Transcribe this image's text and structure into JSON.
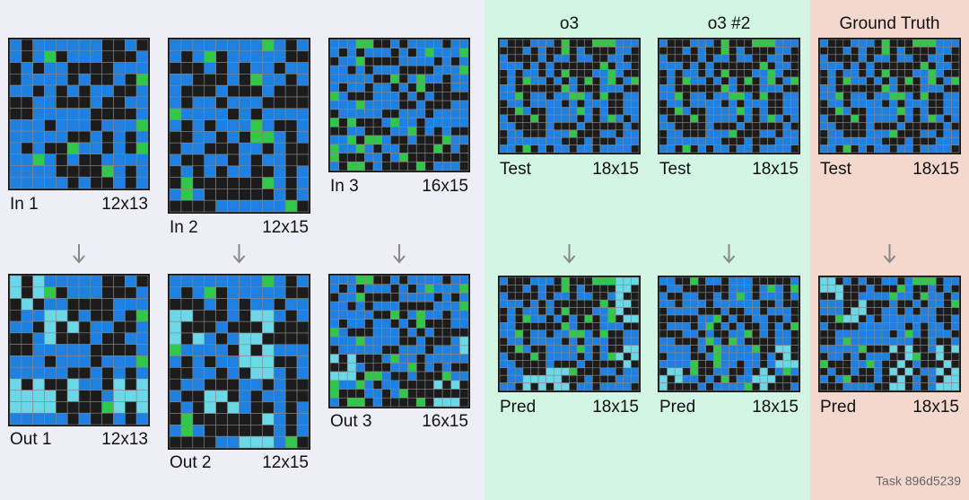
{
  "header": {
    "columns": [
      "o3",
      "o3 #2",
      "Ground Truth"
    ]
  },
  "examples": [
    {
      "input": {
        "label": "In 1",
        "size": "12x13"
      },
      "output": {
        "label": "Out 1",
        "size": "12x13"
      }
    },
    {
      "input": {
        "label": "In 2",
        "size": "12x15"
      },
      "output": {
        "label": "Out 2",
        "size": "12x15"
      }
    },
    {
      "input": {
        "label": "In 3",
        "size": "16x15"
      },
      "output": {
        "label": "Out 3",
        "size": "16x15"
      }
    }
  ],
  "attempts": [
    {
      "test": {
        "label": "Test",
        "size": "18x15"
      },
      "pred": {
        "label": "Pred",
        "size": "18x15"
      }
    },
    {
      "test": {
        "label": "Test",
        "size": "18x15"
      },
      "pred": {
        "label": "Pred",
        "size": "18x15"
      }
    },
    {
      "test": {
        "label": "Test",
        "size": "18x15"
      },
      "pred": {
        "label": "Pred",
        "size": "18x15"
      }
    }
  ],
  "footer": "Task 896d5239"
}
